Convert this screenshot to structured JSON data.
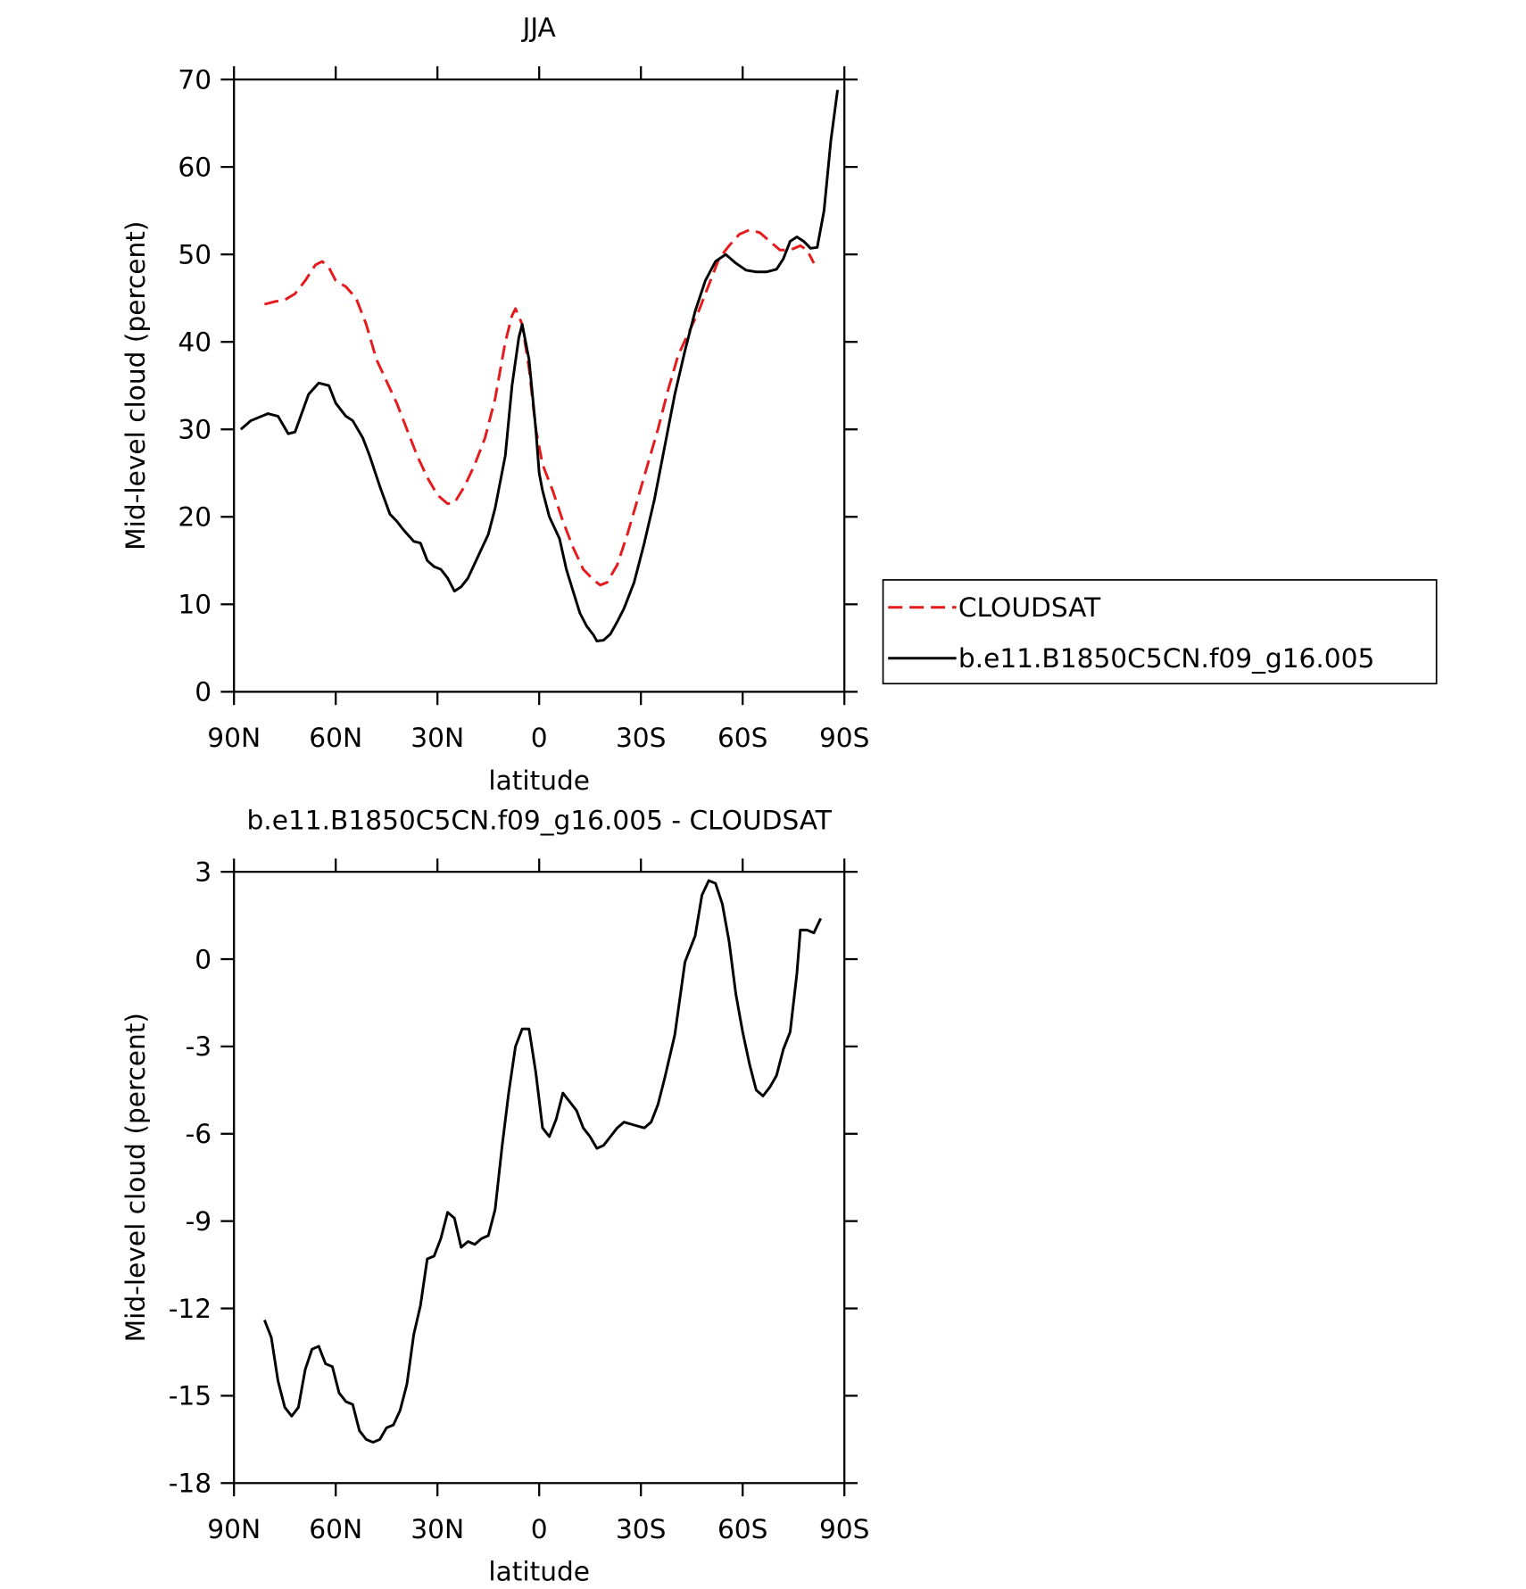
{
  "chart_data": [
    {
      "type": "line",
      "title": "JJA",
      "x_label": "latitude",
      "y_label": "Mid-level cloud (percent)",
      "xlim": [
        90,
        -90
      ],
      "xticks": [
        {
          "value": 90,
          "label": "90N"
        },
        {
          "value": 60,
          "label": "60N"
        },
        {
          "value": 30,
          "label": "30N"
        },
        0,
        {
          "value": -30,
          "label": "30S"
        },
        {
          "value": -60,
          "label": "60S"
        },
        {
          "value": -90,
          "label": "90S"
        }
      ],
      "ylim": [
        0,
        70
      ],
      "yticks": [
        0,
        10,
        20,
        30,
        40,
        50,
        60,
        70
      ],
      "legend": "right",
      "series": [
        {
          "name": "CLOUDSAT",
          "color": "#e41a1c",
          "dash": "dashed",
          "x": [
            81,
            78,
            75,
            72,
            69,
            66,
            64,
            62,
            60,
            57,
            54,
            51,
            48,
            45,
            42,
            39,
            36,
            33,
            30,
            27,
            25,
            22,
            19,
            16,
            13,
            10,
            8,
            7,
            5,
            3,
            1,
            -1,
            -4,
            -7,
            -10,
            -13,
            -16,
            -18,
            -20,
            -23,
            -26,
            -29,
            -32,
            -35,
            -38,
            -41,
            -44,
            -47,
            -50,
            -53,
            -56,
            -59,
            -62,
            -65,
            -68,
            -71,
            -74,
            -77,
            -79,
            -81
          ],
          "values": [
            44.3,
            44.6,
            44.8,
            45.5,
            47,
            48.8,
            49.2,
            48.5,
            47,
            46.3,
            45,
            42,
            38,
            35.5,
            33,
            30,
            27,
            24.5,
            22.5,
            21.5,
            21.6,
            23.5,
            26,
            29,
            33.5,
            40,
            43,
            43.8,
            42,
            37,
            30,
            26,
            23,
            19.5,
            16.5,
            14,
            12.8,
            12.2,
            12.5,
            14.5,
            18,
            22,
            26,
            30,
            34.5,
            38.5,
            41,
            43.5,
            46.5,
            49.5,
            51,
            52.3,
            52.8,
            52.5,
            51.5,
            50.5,
            50.5,
            51,
            50.5,
            49
          ]
        },
        {
          "name": "b.e11.B1850C5CN.f09_g16.005",
          "color": "#000000",
          "dash": "solid",
          "x": [
            88,
            85,
            80,
            77,
            74,
            72,
            68,
            65,
            62,
            60,
            57,
            55,
            52,
            50,
            47,
            44,
            42,
            40,
            37,
            35,
            33,
            31,
            29,
            27,
            25,
            23,
            21,
            18,
            15,
            13,
            10,
            8,
            6,
            5,
            3,
            1,
            0,
            -1,
            -3,
            -6,
            -8,
            -10,
            -12,
            -14,
            -16,
            -17,
            -19,
            -21,
            -23,
            -25,
            -28,
            -31,
            -34,
            -37,
            -40,
            -43,
            -46,
            -49,
            -52,
            -55,
            -58,
            -61,
            -64,
            -67,
            -70,
            -72,
            -74,
            -76,
            -78,
            -80,
            -82,
            -84,
            -86,
            -88
          ],
          "values": [
            30,
            31,
            31.8,
            31.5,
            29.5,
            29.7,
            34,
            35.3,
            35,
            33,
            31.5,
            31,
            29,
            27,
            23.5,
            20.3,
            19.5,
            18.5,
            17.2,
            17,
            15,
            14.3,
            14,
            13,
            11.5,
            12,
            13,
            15.5,
            18,
            21,
            27,
            35,
            40.5,
            42,
            38,
            30,
            25,
            23,
            20,
            17.5,
            14,
            11.5,
            9,
            7.5,
            6.5,
            5.8,
            5.9,
            6.6,
            8,
            9.5,
            12.5,
            17,
            22,
            28,
            34,
            39,
            43.5,
            47,
            49.2,
            50,
            49,
            48.2,
            48,
            48,
            48.3,
            49.5,
            51.5,
            52,
            51.5,
            50.7,
            50.8,
            55,
            63,
            68.8
          ]
        }
      ]
    },
    {
      "type": "line",
      "title": "b.e11.B1850C5CN.f09_g16.005 - CLOUDSAT",
      "x_label": "latitude",
      "y_label": "Mid-level cloud (percent)",
      "xlim": [
        90,
        -90
      ],
      "xticks": [
        {
          "value": 90,
          "label": "90N"
        },
        {
          "value": 60,
          "label": "60N"
        },
        {
          "value": 30,
          "label": "30N"
        },
        0,
        {
          "value": -30,
          "label": "30S"
        },
        {
          "value": -60,
          "label": "60S"
        },
        {
          "value": -90,
          "label": "90S"
        }
      ],
      "ylim": [
        -18,
        3
      ],
      "yticks": [
        -18,
        -15,
        -12,
        -9,
        -6,
        -3,
        0,
        3
      ],
      "series": [
        {
          "color": "#000000",
          "dash": "solid",
          "x": [
            81,
            79,
            77,
            75,
            73,
            71,
            69,
            67,
            65,
            63,
            61,
            59,
            57,
            55,
            53,
            51,
            49,
            47,
            45,
            43,
            41,
            39,
            37,
            35,
            33,
            31,
            29,
            27,
            25,
            23,
            21,
            19,
            17,
            15,
            13,
            11,
            9,
            7,
            5,
            3,
            1,
            -1,
            -3,
            -5,
            -7,
            -9,
            -11,
            -13,
            -15,
            -17,
            -19,
            -21,
            -23,
            -25,
            -28,
            -31,
            -33,
            -35,
            -37,
            -40,
            -43,
            -46,
            -48,
            -50,
            -52,
            -54,
            -56,
            -58,
            -60,
            -62,
            -64,
            -66,
            -68,
            -70,
            -72,
            -74,
            -76,
            -77,
            -79,
            -81,
            -83
          ],
          "values": [
            -12.4,
            -13,
            -14.5,
            -15.4,
            -15.7,
            -15.4,
            -14.1,
            -13.4,
            -13.3,
            -13.9,
            -14,
            -14.9,
            -15.2,
            -15.3,
            -16.2,
            -16.5,
            -16.6,
            -16.5,
            -16.1,
            -16,
            -15.5,
            -14.6,
            -12.9,
            -11.9,
            -10.3,
            -10.2,
            -9.6,
            -8.7,
            -8.9,
            -9.9,
            -9.7,
            -9.8,
            -9.6,
            -9.5,
            -8.6,
            -6.5,
            -4.6,
            -3,
            -2.4,
            -2.4,
            -3.9,
            -5.8,
            -6.1,
            -5.5,
            -4.6,
            -4.9,
            -5.2,
            -5.8,
            -6.1,
            -6.5,
            -6.4,
            -6.1,
            -5.8,
            -5.6,
            -5.7,
            -5.8,
            -5.6,
            -5,
            -4.1,
            -2.6,
            -0.1,
            0.8,
            2.2,
            2.7,
            2.6,
            1.9,
            0.6,
            -1.2,
            -2.5,
            -3.6,
            -4.5,
            -4.7,
            -4.4,
            -4,
            -3.1,
            -2.5,
            -0.5,
            1,
            1,
            0.9,
            1.4
          ]
        }
      ]
    }
  ]
}
